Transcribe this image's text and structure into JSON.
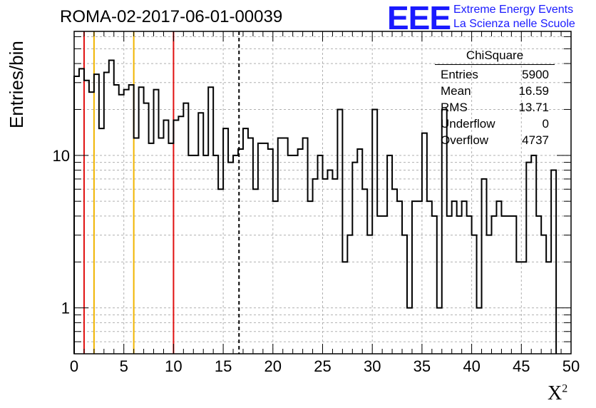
{
  "title": "ROMA-02-2017-06-01-00039",
  "logo": {
    "mark": "EEE",
    "line1": "Extreme Energy Events",
    "line2": "La Scienza nelle Scuole",
    "color": "#1a1aff"
  },
  "stats": {
    "name": "ChiSquare",
    "rows": [
      {
        "label": "Entries",
        "value": "5900"
      },
      {
        "label": "Mean",
        "value": "16.59"
      },
      {
        "label": "RMS",
        "value": "13.71"
      },
      {
        "label": "Underflow",
        "value": "0"
      },
      {
        "label": "Overflow",
        "value": "4737"
      }
    ]
  },
  "chart_data": {
    "type": "histogram",
    "scale_y": "log",
    "xlabel_base": "X",
    "xlabel_sup": "2",
    "ylabel": "Entries/bin",
    "xlim": [
      0,
      50
    ],
    "ylim": [
      0.5,
      65
    ],
    "grid": true,
    "bin_width": 0.5,
    "x_ticks": [
      "0",
      "5",
      "10",
      "15",
      "20",
      "25",
      "30",
      "35",
      "40",
      "45",
      "50"
    ],
    "y_ticks": [
      {
        "value": 1,
        "label": "1"
      },
      {
        "value": 10,
        "label": "10"
      }
    ],
    "values": [
      33,
      37,
      31,
      26,
      34,
      15,
      35,
      42,
      29,
      25,
      27,
      29,
      13,
      28,
      22,
      12,
      27,
      13,
      17,
      12,
      17,
      18,
      22,
      10,
      10,
      19,
      10,
      28,
      10,
      6,
      15,
      9,
      10,
      11,
      15,
      13,
      6,
      12,
      12,
      11,
      5,
      13,
      13,
      10,
      10,
      11,
      13,
      5,
      7,
      10,
      7,
      8,
      7,
      20,
      2,
      3,
      9,
      11,
      6,
      3,
      20,
      4,
      4,
      10,
      6,
      5,
      3,
      1,
      5,
      5,
      14,
      5,
      4,
      1,
      20,
      4,
      5,
      4,
      5,
      4,
      3,
      1,
      7,
      3,
      4,
      5,
      4,
      4,
      4,
      2,
      2,
      9,
      10,
      4,
      3,
      2,
      8
    ],
    "lines": [
      {
        "x": 1,
        "color": "#e01010",
        "style": "solid"
      },
      {
        "x": 2,
        "color": "#f0b400",
        "style": "solid"
      },
      {
        "x": 6,
        "color": "#f0b400",
        "style": "solid"
      },
      {
        "x": 10,
        "color": "#e01010",
        "style": "solid"
      },
      {
        "x": 16.59,
        "color": "#000000",
        "style": "dashed"
      }
    ]
  }
}
